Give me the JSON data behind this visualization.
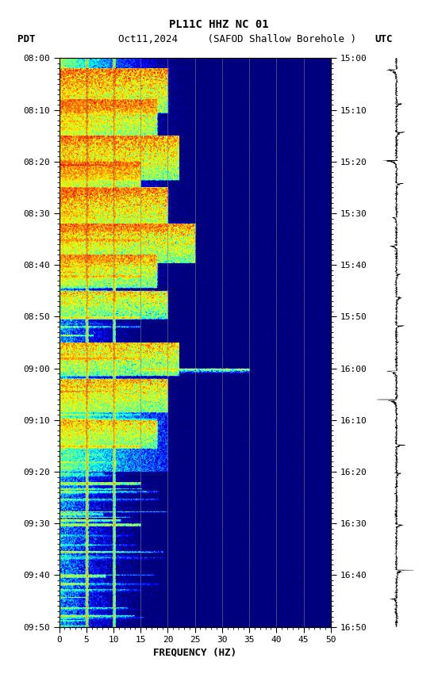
{
  "title_line1": "PL11C HHZ NC 01",
  "pdt_label": "PDT",
  "utc_label": "UTC",
  "date_station": "Oct11,2024     (SAFOD Shallow Borehole )",
  "xlabel": "FREQUENCY (HZ)",
  "freq_min": 0,
  "freq_max": 50,
  "pdt_ticks": [
    "08:00",
    "08:10",
    "08:20",
    "08:30",
    "08:40",
    "08:50",
    "09:00",
    "09:10",
    "09:20",
    "09:30",
    "09:40",
    "09:50"
  ],
  "utc_ticks": [
    "15:00",
    "15:10",
    "15:20",
    "15:30",
    "15:40",
    "15:50",
    "16:00",
    "16:10",
    "16:20",
    "16:30",
    "16:40",
    "16:50"
  ],
  "n_time": 660,
  "n_freq": 500,
  "background_color": "#ffffff",
  "colormap": "jet",
  "vertical_lines_freq": [
    5,
    10,
    15,
    20,
    25,
    30,
    35,
    40,
    45
  ],
  "freq_ticks": [
    0,
    5,
    10,
    15,
    20,
    25,
    30,
    35,
    40,
    45,
    50
  ],
  "vline_color": "#808080",
  "waveform_color": "#000000",
  "vmin": -2.0,
  "vmax": 1.5
}
